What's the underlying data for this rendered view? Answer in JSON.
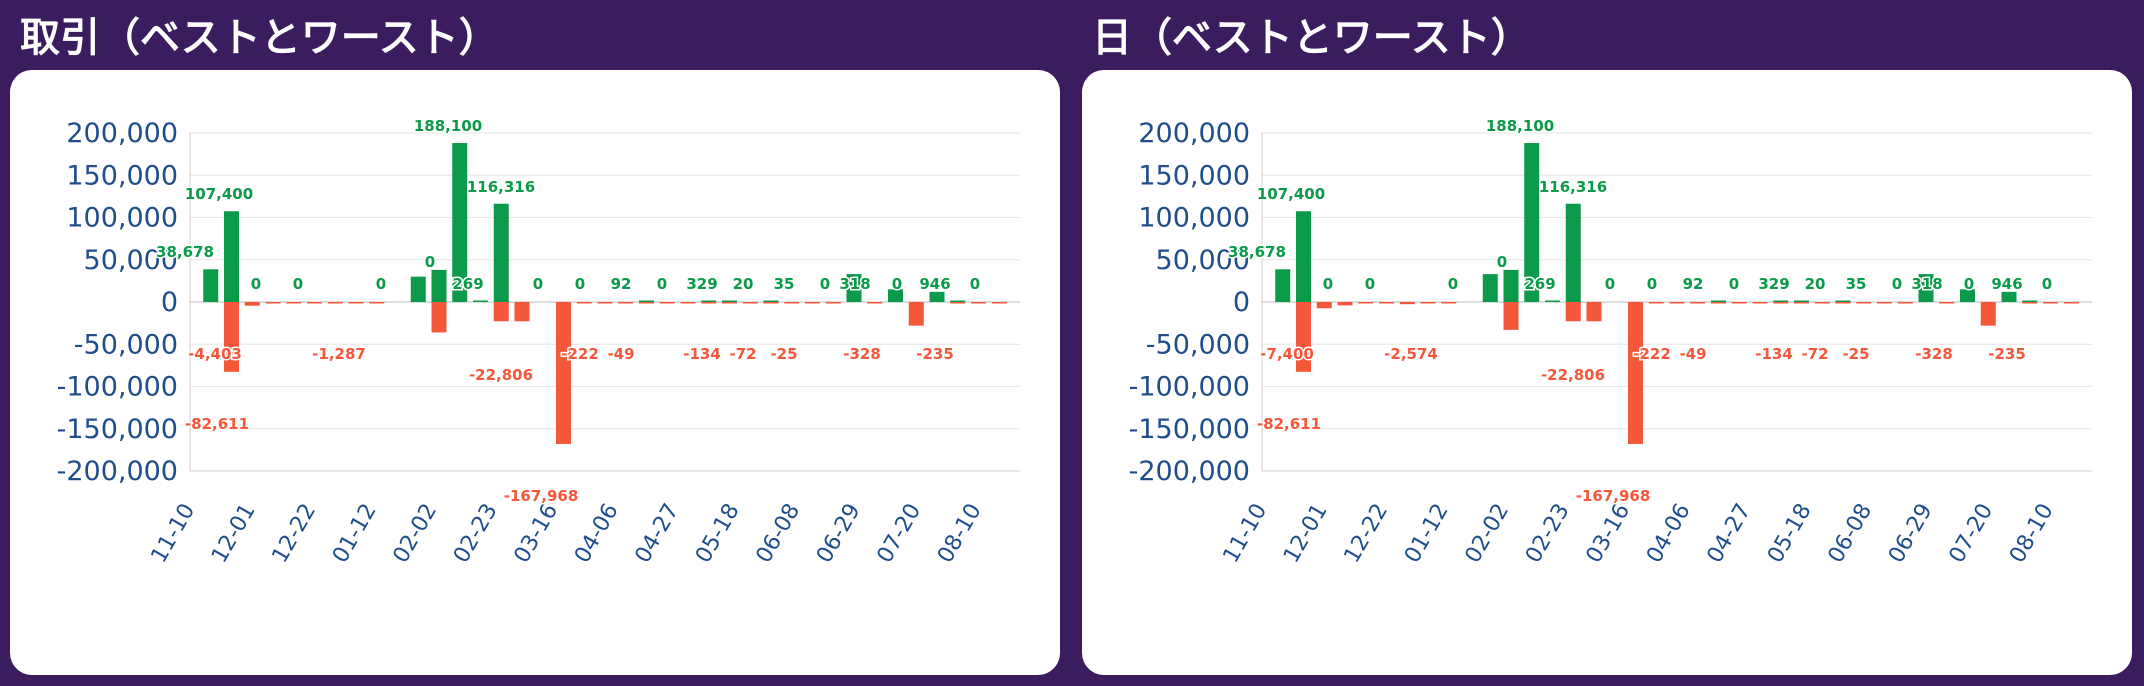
{
  "colors": {
    "positive": "#0b9a4a",
    "negative": "#f4573a",
    "axis": "#1f4e8c",
    "background": "#3b1c5e",
    "grid": "#e6e6e6"
  },
  "panels": [
    {
      "title": "取引（ベストとワースト）"
    },
    {
      "title": "日（ベストとワースト）"
    }
  ],
  "chart_data": [
    {
      "type": "bar",
      "title": "取引（ベストとワースト）",
      "ylim": [
        -200000,
        200000
      ],
      "yticks": [
        "200,000",
        "150,000",
        "100,000",
        "50,000",
        "0",
        "-50,000",
        "-100,000",
        "-150,000",
        "-200,000"
      ],
      "xticks": [
        "11-10",
        "12-01",
        "12-22",
        "01-12",
        "02-02",
        "02-23",
        "03-16",
        "04-06",
        "04-27",
        "05-18",
        "06-08",
        "06-29",
        "07-20",
        "08-10"
      ],
      "grid": true,
      "series": [
        {
          "values": [
            38678,
            107400,
            0,
            0,
            0,
            0,
            0,
            0,
            0,
            0,
            30000,
            38000,
            188100,
            269,
            116316,
            0,
            0,
            0,
            0,
            0,
            0,
            92,
            0,
            0,
            329,
            20,
            0,
            35,
            0,
            0,
            0,
            33000,
            0,
            15000,
            0,
            12000,
            946,
            0,
            0
          ]
        },
        {
          "values": [
            0,
            -82611,
            -4403,
            -1500,
            -1287,
            -600,
            -800,
            -500,
            -1287,
            0,
            0,
            -36000,
            0,
            0,
            -22806,
            -22806,
            0,
            -167968,
            -222,
            -300,
            -400,
            -49,
            -100,
            -200,
            -134,
            -72,
            -100,
            -72,
            -100,
            -25,
            -100,
            0,
            -328,
            0,
            -28000,
            0,
            -235,
            -235,
            -300
          ]
        }
      ],
      "data_labels": [
        "38,678",
        "107,400",
        "-82,611",
        "-4,403",
        "0",
        "0",
        "-1,287",
        "0",
        "0",
        "188,100",
        "269",
        "116,316",
        "-22,806",
        "0",
        "-167,968",
        "-222",
        "0",
        "92",
        "-49",
        "0",
        "329",
        "-134",
        "20",
        "-72",
        "35",
        "-25",
        "0",
        "318",
        "-328",
        "0",
        "946",
        "-235",
        "0"
      ]
    },
    {
      "type": "bar",
      "title": "日（ベストとワースト）",
      "ylim": [
        -200000,
        200000
      ],
      "yticks": [
        "200,000",
        "150,000",
        "100,000",
        "50,000",
        "0",
        "-50,000",
        "-100,000",
        "-150,000",
        "-200,000"
      ],
      "xticks": [
        "11-10",
        "12-01",
        "12-22",
        "01-12",
        "02-02",
        "02-23",
        "03-16",
        "04-06",
        "04-27",
        "05-18",
        "06-08",
        "06-29",
        "07-20",
        "08-10"
      ],
      "grid": true,
      "series": [
        {
          "values": [
            38678,
            107400,
            0,
            0,
            0,
            0,
            0,
            0,
            0,
            0,
            33000,
            38000,
            188100,
            269,
            116316,
            0,
            0,
            0,
            0,
            0,
            0,
            92,
            0,
            0,
            329,
            20,
            0,
            35,
            0,
            0,
            0,
            33000,
            0,
            15000,
            0,
            12000,
            946,
            0,
            0
          ]
        },
        {
          "values": [
            0,
            -82611,
            -7400,
            -4000,
            -1500,
            -1000,
            -2574,
            -800,
            -1000,
            0,
            0,
            -33000,
            0,
            0,
            -22806,
            -22806,
            0,
            -167968,
            -222,
            -300,
            -400,
            -49,
            -100,
            -200,
            -134,
            -72,
            -100,
            -72,
            -100,
            -25,
            -100,
            0,
            -328,
            0,
            -28000,
            0,
            -235,
            -235,
            -300
          ]
        }
      ],
      "data_labels": [
        "38,678",
        "107,400",
        "-82,611",
        "-7,400",
        "0",
        "0",
        "-2,574",
        "0",
        "0",
        "188,100",
        "269",
        "116,316",
        "-22,806",
        "0",
        "-167,968",
        "-222",
        "0",
        "92",
        "-49",
        "0",
        "329",
        "-134",
        "20",
        "-72",
        "35",
        "-25",
        "0",
        "318",
        "-328",
        "0",
        "946",
        "-235",
        "0"
      ]
    }
  ]
}
